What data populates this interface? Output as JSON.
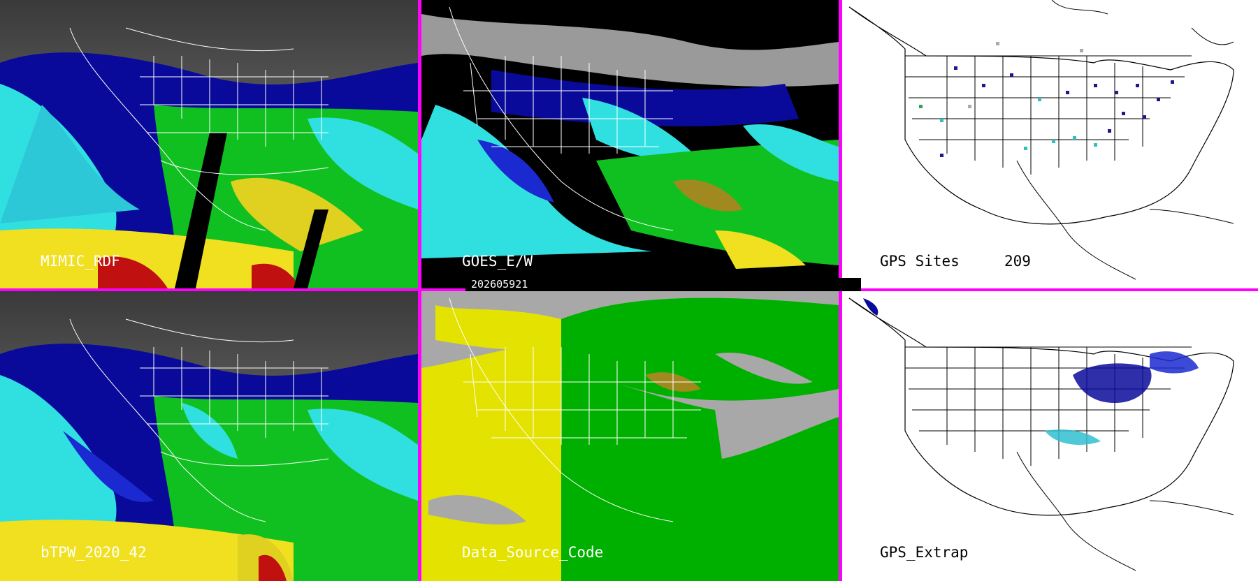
{
  "panels": [
    {
      "id": "mimic",
      "label": "MIMIC_RDF"
    },
    {
      "id": "goes",
      "label": "GOES_E/W"
    },
    {
      "id": "gps",
      "label": "GPS Sites",
      "count": "209"
    },
    {
      "id": "btpw",
      "label": "bTPW_2020_42"
    },
    {
      "id": "dsc",
      "label": "Data_Source_Code"
    },
    {
      "id": "gpsx",
      "label": "GPS_Extrap"
    }
  ],
  "timestamp": "202605921",
  "colors": {
    "divider": "#ff00ff",
    "dry_gray": "#9a9a9a",
    "navy": "#0a0a9a",
    "blue": "#1a2ad0",
    "cyan": "#30e0e0",
    "green": "#10c020",
    "lime": "#80e020",
    "olive": "#a08a20",
    "yellow": "#f0e020",
    "red": "#c01010",
    "source_yellow": "#e4e200",
    "source_green": "#00b000",
    "source_gray": "#a8a8a8"
  }
}
